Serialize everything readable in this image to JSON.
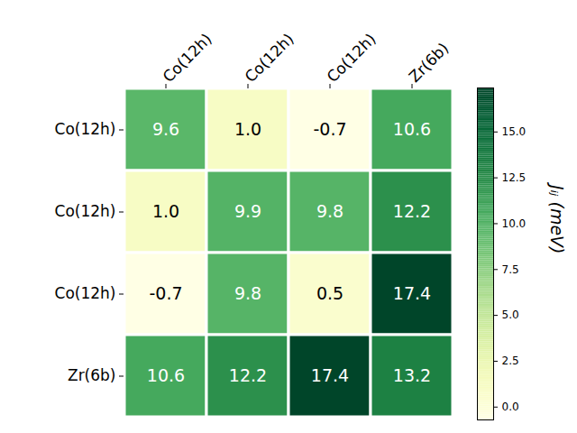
{
  "chart_data": {
    "type": "heatmap",
    "x_categories": [
      "Co(12h)",
      "Co(12h)",
      "Co(12h)",
      "Zr(6b)"
    ],
    "y_categories": [
      "Co(12h)",
      "Co(12h)",
      "Co(12h)",
      "Zr(6b)"
    ],
    "values": [
      [
        9.6,
        1.0,
        -0.7,
        10.6
      ],
      [
        1.0,
        9.9,
        9.8,
        12.2
      ],
      [
        -0.7,
        9.8,
        0.5,
        17.4
      ],
      [
        10.6,
        12.2,
        17.4,
        13.2
      ]
    ],
    "value_labels": [
      [
        "9.6",
        "1.0",
        "-0.7",
        "10.6"
      ],
      [
        "1.0",
        "9.9",
        "9.8",
        "12.2"
      ],
      [
        "-0.7",
        "9.8",
        "0.5",
        "17.4"
      ],
      [
        "10.6",
        "12.2",
        "17.4",
        "13.2"
      ]
    ],
    "data_labels": true,
    "color": "YlGn",
    "colorbar": {
      "range": [
        -0.7,
        17.4
      ],
      "ticks": [
        {
          "value": 0,
          "label": "0.0"
        },
        {
          "value": 2.5,
          "label": "2.5"
        },
        {
          "value": 5,
          "label": "5.0"
        },
        {
          "value": 7.5,
          "label": "7.5"
        },
        {
          "value": 10,
          "label": "10.0"
        },
        {
          "value": 12.5,
          "label": "12.5"
        },
        {
          "value": 15,
          "label": "15.0"
        }
      ],
      "label": "Jᵢⱼ (meV)"
    }
  }
}
